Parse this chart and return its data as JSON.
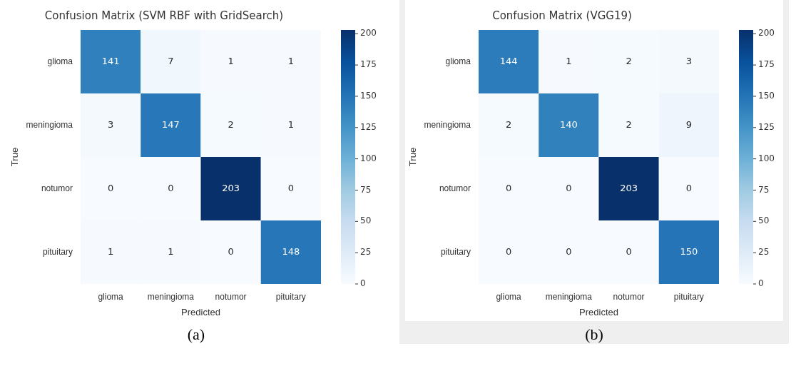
{
  "chart_data": [
    {
      "type": "heatmap",
      "title": "Confusion Matrix (SVM RBF with GridSearch)",
      "xlabel": "Predicted",
      "ylabel": "True",
      "categories": [
        "glioma",
        "meningioma",
        "notumor",
        "pituitary"
      ],
      "y_categories": [
        "glioma",
        "meningioma",
        "notumor",
        "pituitary"
      ],
      "cells": [
        [
          141,
          7,
          1,
          1
        ],
        [
          3,
          147,
          2,
          1
        ],
        [
          0,
          0,
          203,
          0
        ],
        [
          1,
          1,
          0,
          148
        ]
      ],
      "data_labels": true,
      "clim": [
        0,
        203
      ],
      "cticks": [
        0,
        25,
        50,
        75,
        100,
        125,
        150,
        175,
        200
      ],
      "annotations": [
        "(a)"
      ]
    },
    {
      "type": "heatmap",
      "title": "Confusion Matrix (VGG19)",
      "xlabel": "Predicted",
      "ylabel": "True",
      "categories": [
        "glioma",
        "meningioma",
        "notumor",
        "pituitary"
      ],
      "y_categories": [
        "glioma",
        "meningioma",
        "notumor",
        "pituitary"
      ],
      "cells": [
        [
          144,
          1,
          2,
          3
        ],
        [
          2,
          140,
          2,
          9
        ],
        [
          0,
          0,
          203,
          0
        ],
        [
          0,
          0,
          0,
          150
        ]
      ],
      "data_labels": true,
      "clim": [
        0,
        203
      ],
      "cticks": [
        0,
        25,
        50,
        75,
        100,
        125,
        150,
        175,
        200
      ],
      "annotations": [
        "(b)"
      ]
    }
  ]
}
